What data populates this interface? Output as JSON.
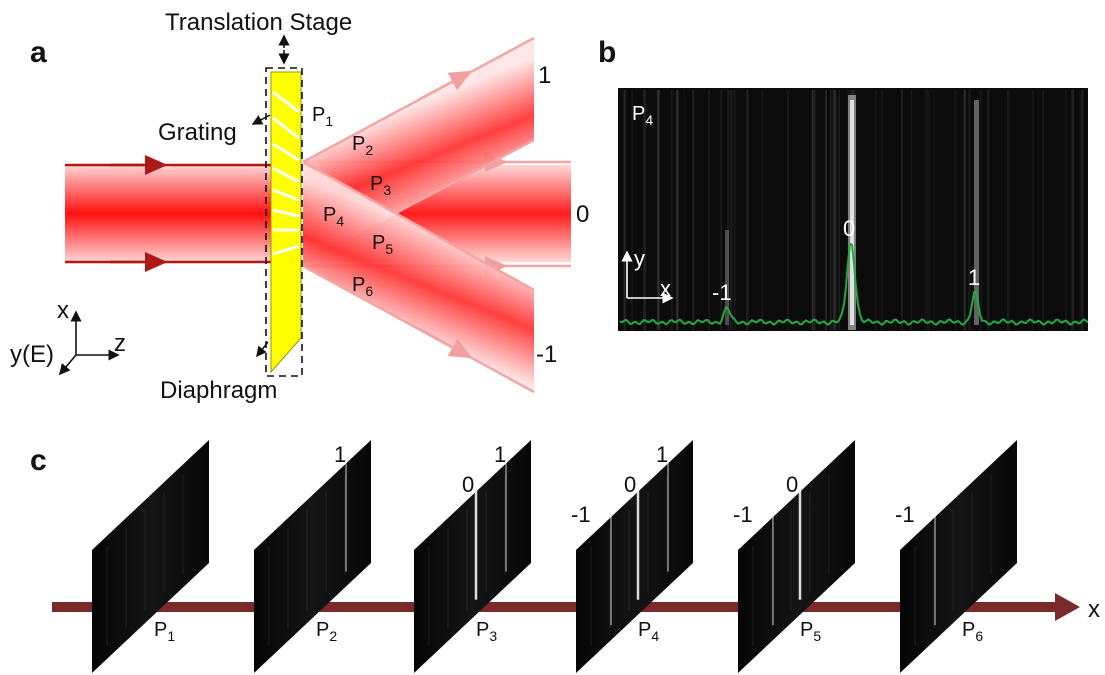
{
  "panel_a": {
    "label": "a",
    "translation_stage": "Translation Stage",
    "grating": "Grating",
    "diaphragm": "Diaphragm",
    "positions": [
      "P1",
      "P2",
      "P3",
      "P4",
      "P5",
      "P6"
    ],
    "orders": [
      "1",
      "0",
      "-1"
    ],
    "axes": {
      "x": "x",
      "z": "z",
      "y": "y(E)"
    }
  },
  "panel_b": {
    "label": "b",
    "plane": "P4",
    "axes": {
      "y": "y",
      "x": "x"
    },
    "orders": [
      "-1",
      "0",
      "1"
    ]
  },
  "panel_c": {
    "label": "c",
    "axis": "x",
    "planes": [
      {
        "name": "P1",
        "orders": []
      },
      {
        "name": "P2",
        "orders": [
          "1"
        ]
      },
      {
        "name": "P3",
        "orders": [
          "0",
          "1"
        ]
      },
      {
        "name": "P4",
        "orders": [
          "-1",
          "0",
          "1"
        ]
      },
      {
        "name": "P5",
        "orders": [
          "-1",
          "0"
        ]
      },
      {
        "name": "P6",
        "orders": [
          "-1"
        ]
      }
    ]
  },
  "colors": {
    "beam": "#ff2222",
    "beam_edge": "#cc1111",
    "grating": "#ffff00",
    "axis_arrow": "#7a2a2a",
    "profile": "#22aa44"
  }
}
